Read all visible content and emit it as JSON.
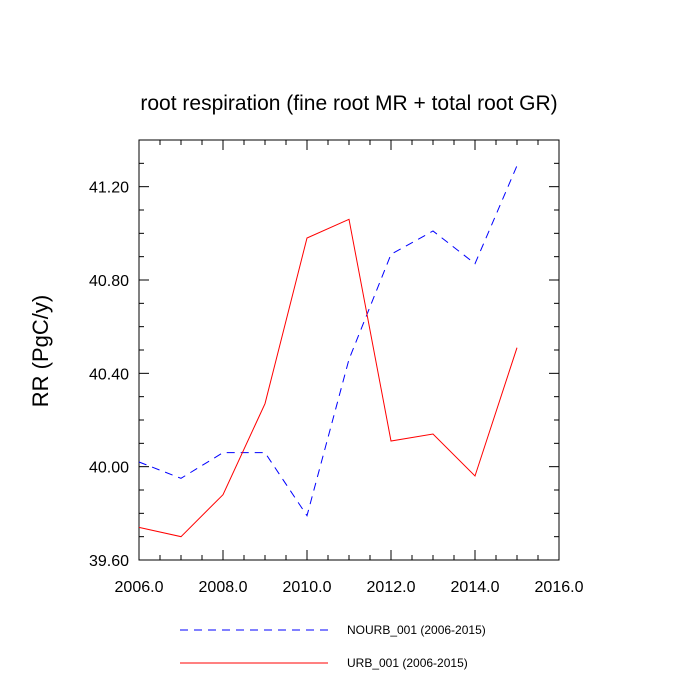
{
  "chart_data": {
    "type": "line",
    "title": "root respiration (fine root MR + total root GR)",
    "xlabel": "",
    "ylabel": "RR  (PgC/y)",
    "xlim": [
      2006.0,
      2016.0
    ],
    "ylim": [
      39.6,
      41.4
    ],
    "x_ticks": [
      "2006.0",
      "2008.0",
      "2010.0",
      "2012.0",
      "2014.0",
      "2016.0"
    ],
    "y_ticks": [
      "39.60",
      "40.00",
      "40.40",
      "40.80",
      "41.20"
    ],
    "x": [
      2006,
      2007,
      2008,
      2009,
      2010,
      2011,
      2012,
      2013,
      2014,
      2015
    ],
    "series": [
      {
        "name": "NOURB_001 (2006-2015)",
        "color": "#0000ff",
        "style": "dashed",
        "values": [
          40.02,
          39.95,
          40.06,
          40.06,
          39.79,
          40.46,
          40.91,
          41.01,
          40.87,
          41.29
        ]
      },
      {
        "name": "URB_001 (2006-2015)",
        "color": "#ff0000",
        "style": "solid",
        "values": [
          39.74,
          39.7,
          39.88,
          40.27,
          40.98,
          41.06,
          40.11,
          40.14,
          39.96,
          40.51
        ]
      }
    ],
    "grid": false,
    "legend_position": "bottom"
  }
}
